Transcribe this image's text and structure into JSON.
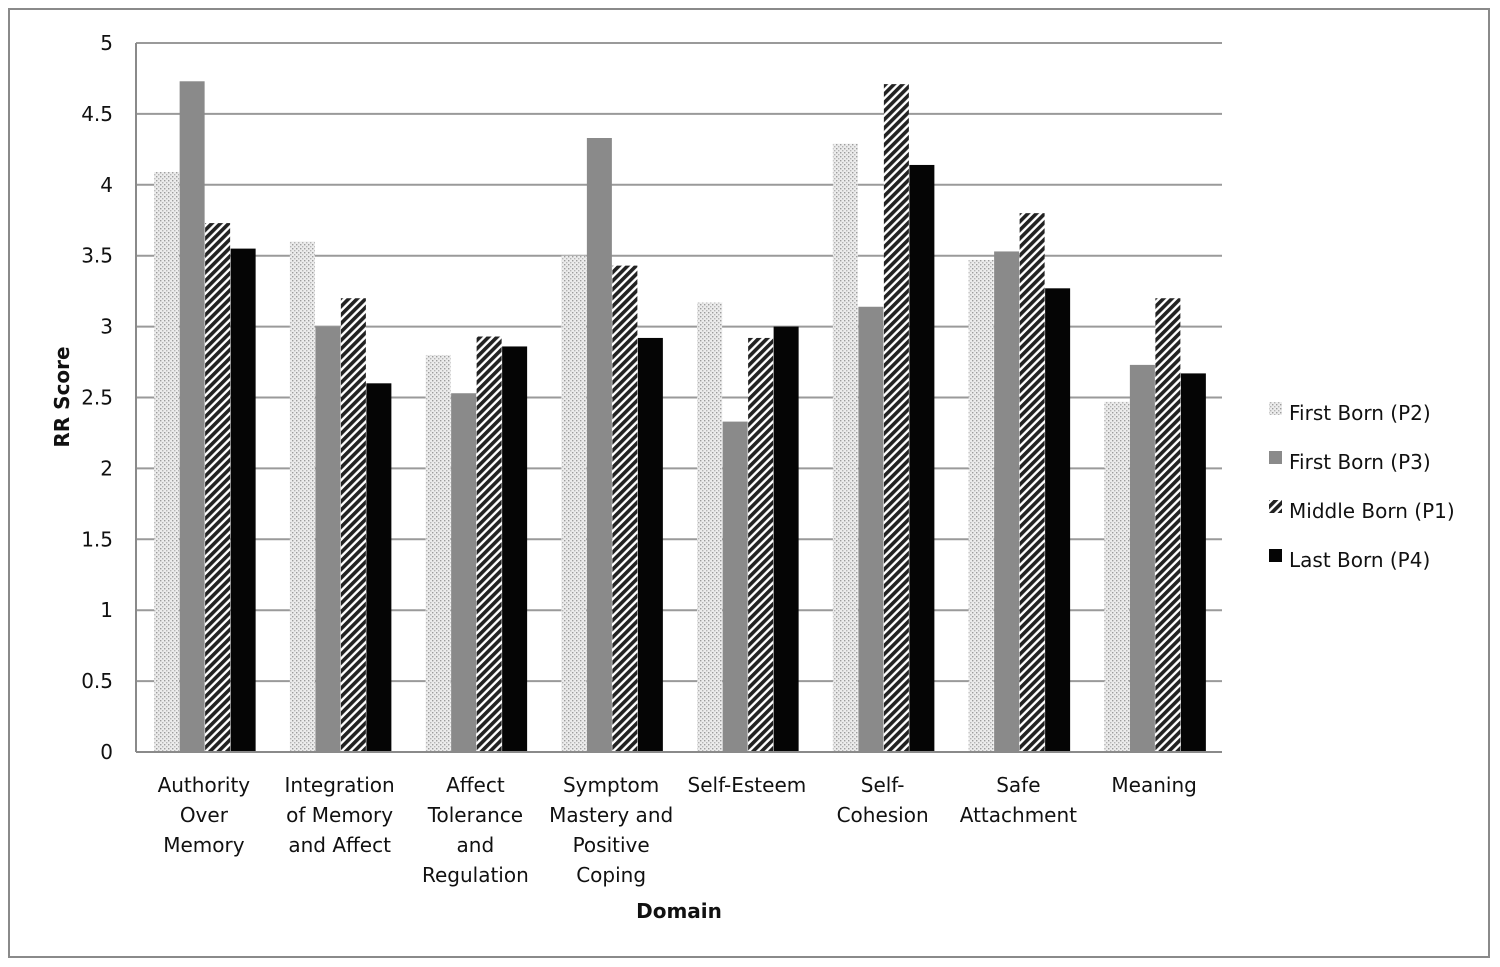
{
  "chart_data": {
    "type": "bar",
    "xlabel": "Domain",
    "ylabel": "RR Score",
    "ylim": [
      0,
      5
    ],
    "yticks": [
      "0",
      "0.5",
      "1",
      "1.5",
      "2",
      "2.5",
      "3",
      "3.5",
      "4",
      "4.5",
      "5"
    ],
    "grid": true,
    "legend_position": "right",
    "categories": [
      "Authority Over Memory",
      "Integration of Memory and Affect",
      "Affect Tolerance and Regulation",
      "Symptom Mastery and Positive Coping",
      "Self-Esteem",
      "Self-Cohesion",
      "Safe Attachment",
      "Meaning"
    ],
    "category_lines": [
      [
        "Authority",
        "Over",
        "Memory"
      ],
      [
        "Integration",
        "of Memory",
        "and Affect"
      ],
      [
        "Affect",
        "Tolerance",
        "and",
        "Regulation"
      ],
      [
        "Symptom",
        "Mastery and",
        "Positive",
        "Coping"
      ],
      [
        "Self-Esteem"
      ],
      [
        "Self-",
        "Cohesion"
      ],
      [
        "Safe",
        "Attachment"
      ],
      [
        "Meaning"
      ]
    ],
    "series": [
      {
        "name": "First Born (P2)",
        "pattern": "dots",
        "values": [
          4.09,
          3.6,
          2.8,
          3.5,
          3.17,
          4.29,
          3.47,
          2.47
        ]
      },
      {
        "name": "First Born (P3)",
        "pattern": "solid-gray",
        "values": [
          4.73,
          3.0,
          2.53,
          4.33,
          2.33,
          3.14,
          3.53,
          2.73
        ]
      },
      {
        "name": "Middle Born (P1)",
        "pattern": "hatch",
        "values": [
          3.73,
          3.2,
          2.93,
          3.43,
          2.92,
          4.71,
          3.8,
          3.2
        ]
      },
      {
        "name": "Last Born (P4)",
        "pattern": "solid-black",
        "values": [
          3.55,
          2.6,
          2.86,
          2.92,
          3.0,
          4.14,
          3.27,
          2.67
        ]
      }
    ],
    "colors": {
      "gray": "#8a8a8a",
      "black": "#050505",
      "dots": "#e6e6e6",
      "grid": "#9a9a9a"
    }
  }
}
